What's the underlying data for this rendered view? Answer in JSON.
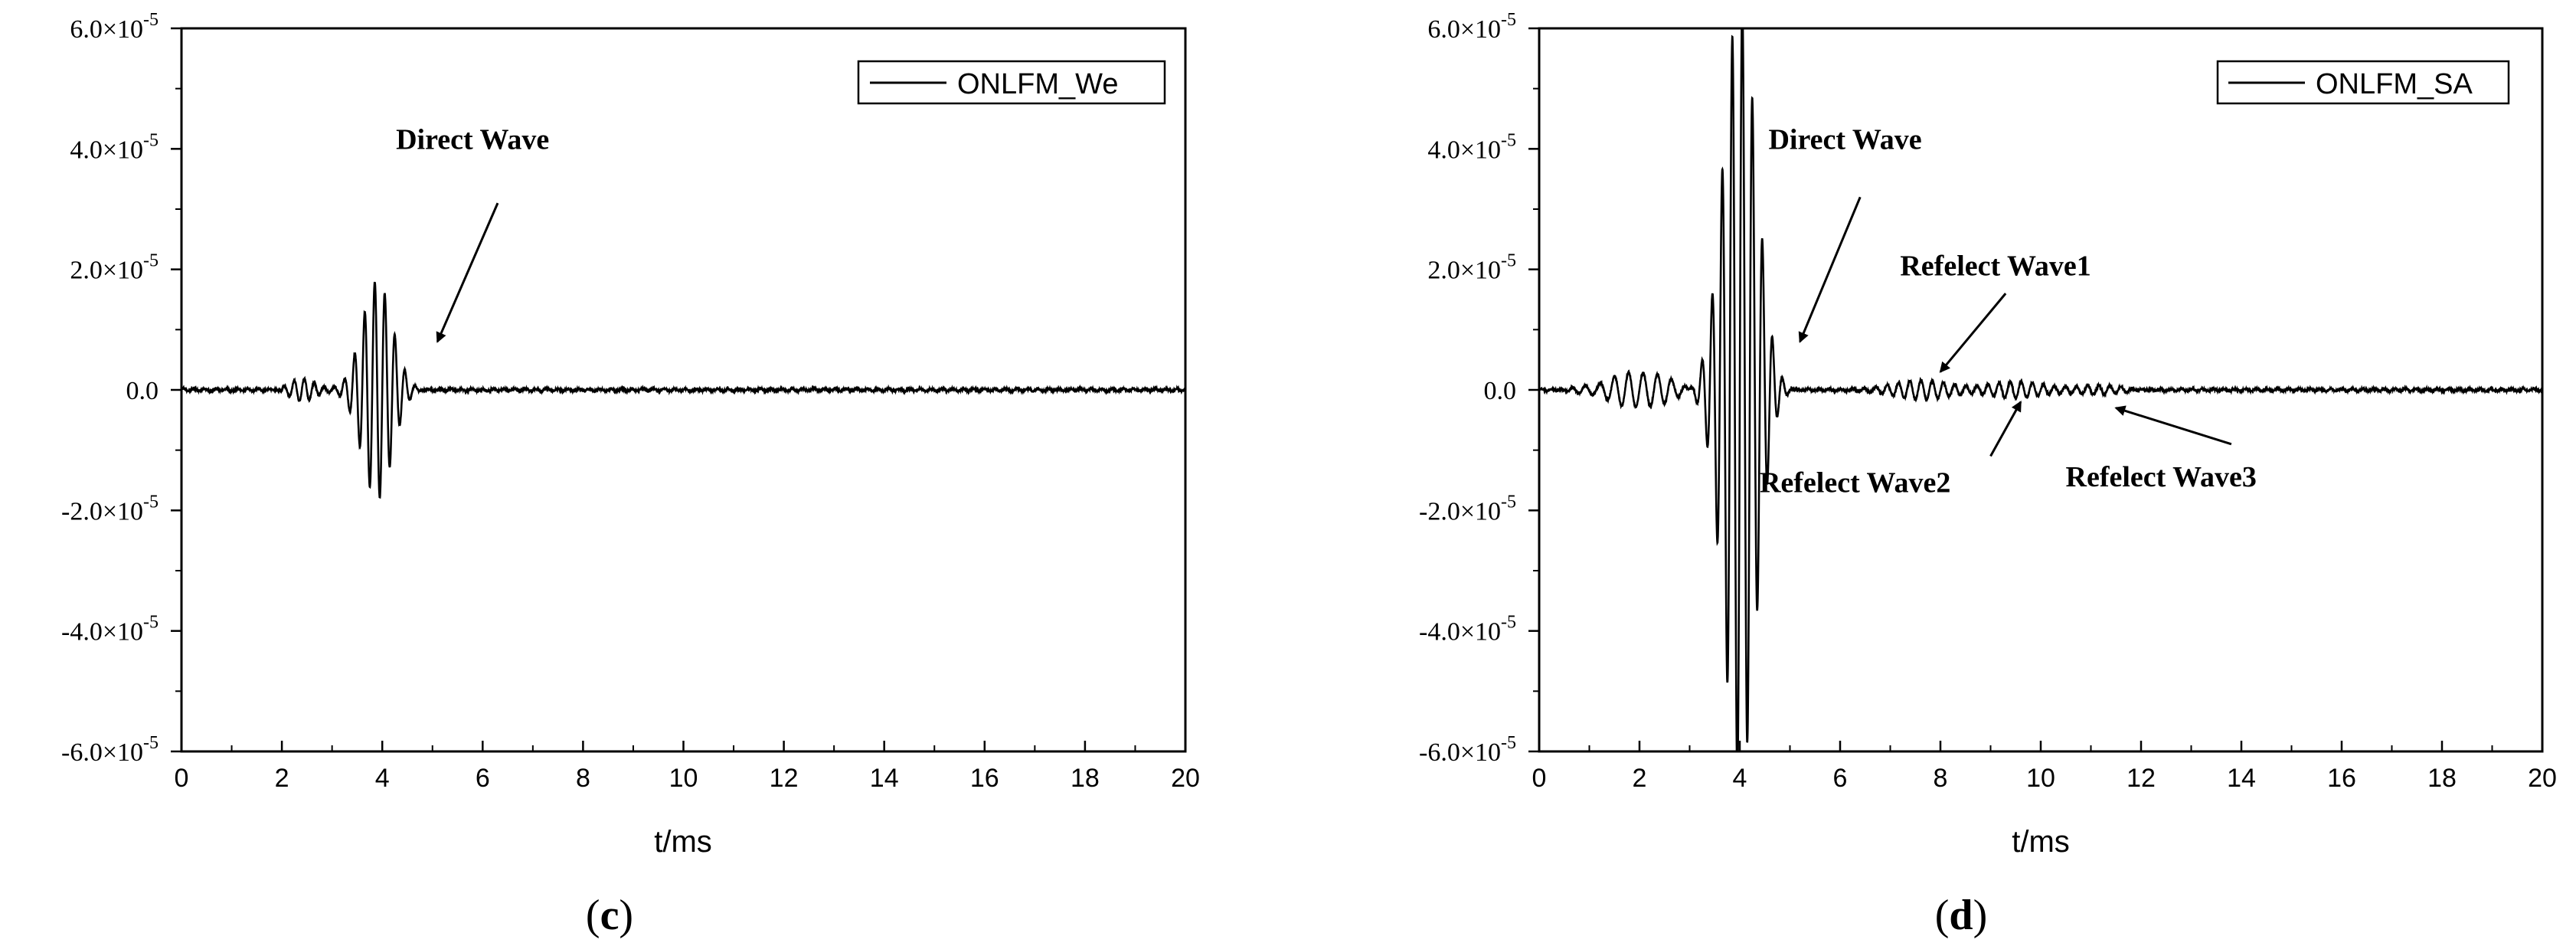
{
  "chart_data": [
    {
      "type": "line",
      "panel_label": "c",
      "xlabel": "t/ms",
      "ylabel": "",
      "xlim": [
        0,
        20
      ],
      "ylim": [
        -6e-05,
        6e-05
      ],
      "x_ticks": [
        "0",
        "2",
        "4",
        "6",
        "8",
        "10",
        "12",
        "14",
        "16",
        "18",
        "20"
      ],
      "y_ticks": [
        {
          "value": 6e-05,
          "label": "6.0×10",
          "exp": "-5"
        },
        {
          "value": 4e-05,
          "label": "4.0×10",
          "exp": "-5"
        },
        {
          "value": 2e-05,
          "label": "2.0×10",
          "exp": "-5"
        },
        {
          "value": 0,
          "label": "0.0",
          "exp": ""
        },
        {
          "value": -2e-05,
          "label": "-2.0×10",
          "exp": "-5"
        },
        {
          "value": -4e-05,
          "label": "-4.0×10",
          "exp": "-5"
        },
        {
          "value": -6e-05,
          "label": "-6.0×10",
          "exp": "-5"
        }
      ],
      "legend": {
        "position": "top-right"
      },
      "series": [
        {
          "name": "ONLFM_We",
          "color": "#000000",
          "waveform": {
            "main_burst": {
              "center_ms": 3.9,
              "width_ms": 0.6,
              "peak": 1.8e-05,
              "freq_khz": 5.0
            },
            "pre_burst": {
              "center_ms": 2.4,
              "width_ms": 0.5,
              "peak": 2e-06,
              "freq_khz": 5.0
            },
            "noise_amp": 3e-07
          },
          "peak_max": 1.7e-05,
          "peak_min": -1.8e-05,
          "signal_span_ms": [
            0,
            6
          ]
        }
      ],
      "annotations": [
        {
          "text": "Direct Wave",
          "label_at": [
            5.8,
            4e-05
          ],
          "arrow_from": [
            6.3,
            3.1e-05
          ],
          "arrow_to": [
            5.1,
            8e-06
          ]
        }
      ]
    },
    {
      "type": "line",
      "panel_label": "d",
      "xlabel": "t/ms",
      "ylabel": "",
      "xlim": [
        0,
        20
      ],
      "ylim": [
        -6e-05,
        6e-05
      ],
      "x_ticks": [
        "0",
        "2",
        "4",
        "6",
        "8",
        "10",
        "12",
        "14",
        "16",
        "18",
        "20"
      ],
      "y_ticks": [
        {
          "value": 6e-05,
          "label": "6.0×10",
          "exp": "-5"
        },
        {
          "value": 4e-05,
          "label": "4.0×10",
          "exp": "-5"
        },
        {
          "value": 2e-05,
          "label": "2.0×10",
          "exp": "-5"
        },
        {
          "value": 0,
          "label": "0.0",
          "exp": ""
        },
        {
          "value": -2e-05,
          "label": "-2.0×10",
          "exp": "-5"
        },
        {
          "value": -4e-05,
          "label": "-4.0×10",
          "exp": "-5"
        },
        {
          "value": -6e-05,
          "label": "-6.0×10",
          "exp": "-5"
        }
      ],
      "legend": {
        "position": "top-right"
      },
      "series": [
        {
          "name": "ONLFM_SA",
          "color": "#000000",
          "waveform": {
            "main_burst": {
              "center_ms": 4.0,
              "width_ms": 0.65,
              "peak": 6.5e-05,
              "freq_khz": 5.0
            },
            "pre_burst": {
              "center_ms": 2.0,
              "width_ms": 1.2,
              "peak": 3e-06,
              "freq_khz": 3.5
            },
            "reflections": [
              {
                "center_ms": 7.6,
                "width_ms": 1.2,
                "peak": 1.8e-06,
                "freq_khz": 4.5
              },
              {
                "center_ms": 9.5,
                "width_ms": 1.0,
                "peak": 1.2e-06,
                "freq_khz": 4.5
              },
              {
                "center_ms": 11.2,
                "width_ms": 1.0,
                "peak": 8e-07,
                "freq_khz": 4.5
              }
            ],
            "noise_amp": 3e-07
          },
          "peak_max": 6.5e-05,
          "peak_min": -6.5e-05,
          "signal_span_ms": [
            0,
            12
          ]
        }
      ],
      "annotations": [
        {
          "text": "Direct Wave",
          "label_at": [
            6.1,
            4e-05
          ],
          "arrow_from": [
            6.4,
            3.2e-05
          ],
          "arrow_to": [
            5.2,
            8e-06
          ]
        },
        {
          "text": "Refelect Wave1",
          "label_at": [
            9.1,
            1.9e-05
          ],
          "arrow_from": [
            9.3,
            1.6e-05
          ],
          "arrow_to": [
            8.0,
            3e-06
          ]
        },
        {
          "text": "Refelect Wave2",
          "label_at": [
            6.3,
            -1.7e-05
          ],
          "arrow_from": [
            9.0,
            -1.1e-05
          ],
          "arrow_to": [
            9.6,
            -2e-06
          ]
        },
        {
          "text": "Refelect Wave3",
          "label_at": [
            12.4,
            -1.6e-05
          ],
          "arrow_from": [
            13.8,
            -9e-06
          ],
          "arrow_to": [
            11.5,
            -3e-06
          ]
        }
      ]
    }
  ]
}
